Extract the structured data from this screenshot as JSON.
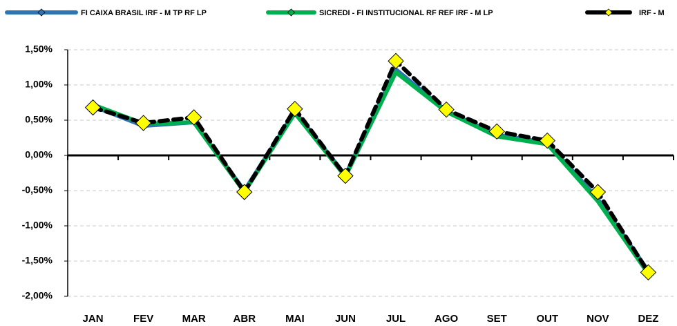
{
  "chart_data": {
    "type": "line",
    "categories": [
      "JAN",
      "FEV",
      "MAR",
      "ABR",
      "MAI",
      "JUN",
      "JUL",
      "AGO",
      "SET",
      "OUT",
      "NOV",
      "DEZ"
    ],
    "series": [
      {
        "name": "FI CAIXA BRASIL IRF - M TP RF LP",
        "color": "#2e75b6",
        "values": [
          0.7,
          0.42,
          0.47,
          -0.5,
          0.62,
          -0.28,
          1.22,
          0.63,
          0.29,
          0.18,
          -0.62,
          -1.64
        ]
      },
      {
        "name": "SICREDI - FI INSTITUCIONAL RF REF IRF - M LP",
        "color": "#00b050",
        "values": [
          0.72,
          0.45,
          0.47,
          -0.52,
          0.6,
          -0.3,
          1.18,
          0.62,
          0.27,
          0.16,
          -0.65,
          -1.68
        ]
      },
      {
        "name": "IRF - M",
        "color": "#000000",
        "marker_color": "#ffff00",
        "values": [
          0.68,
          0.46,
          0.54,
          -0.52,
          0.66,
          -0.29,
          1.34,
          0.65,
          0.34,
          0.21,
          -0.52,
          -1.66
        ]
      }
    ],
    "ylim": [
      -2.0,
      1.5
    ],
    "yticks": [
      {
        "value": -2.0,
        "label": "-2,00%"
      },
      {
        "value": -1.5,
        "label": "-1,50%"
      },
      {
        "value": -1.0,
        "label": "-1,00%"
      },
      {
        "value": -0.5,
        "label": "-0,50%"
      },
      {
        "value": 0,
        "label": "0,00%"
      },
      {
        "value": 0.5,
        "label": "0,50%"
      },
      {
        "value": 1.0,
        "label": "1,00%"
      },
      {
        "value": 1.5,
        "label": "1,50%"
      }
    ],
    "grid": true,
    "legend": "top"
  }
}
